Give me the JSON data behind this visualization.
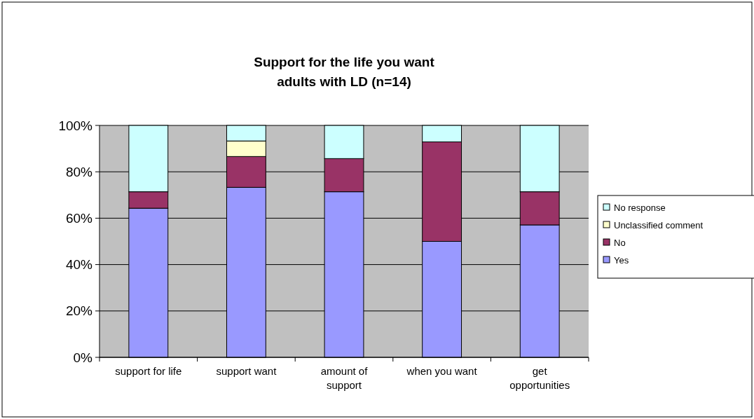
{
  "chart_data": {
    "type": "bar",
    "stacked": true,
    "title": "Support for the life you want\nadults with LD (n=14)",
    "categories": [
      "support for life",
      "support want",
      "amount of support",
      "when you want",
      "get opportunities"
    ],
    "series": [
      {
        "name": "Yes",
        "color": "#9999ff",
        "values": [
          64.3,
          73.3,
          71.4,
          50,
          57.1
        ]
      },
      {
        "name": "No",
        "color": "#993366",
        "values": [
          7.1,
          13.3,
          14.3,
          42.9,
          14.3
        ]
      },
      {
        "name": "Unclassified comment",
        "color": "#ffffcc",
        "values": [
          0,
          6.7,
          0,
          0,
          0
        ]
      },
      {
        "name": "No response",
        "color": "#ccffff",
        "values": [
          28.6,
          6.7,
          14.3,
          7.1,
          28.6
        ]
      }
    ],
    "ylim": [
      0,
      100
    ],
    "yticks": [
      {
        "value": 0,
        "label": "0%"
      },
      {
        "value": 20,
        "label": "20%"
      },
      {
        "value": 40,
        "label": "40%"
      },
      {
        "value": 60,
        "label": "60%"
      },
      {
        "value": 80,
        "label": "80%"
      },
      {
        "value": 100,
        "label": "100%"
      }
    ],
    "grid": "y",
    "legend": "right"
  }
}
